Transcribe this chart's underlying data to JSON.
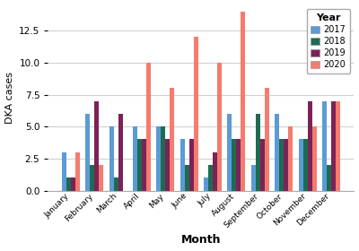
{
  "months": [
    "January",
    "February",
    "March",
    "April",
    "May",
    "June",
    "July",
    "August",
    "September",
    "October",
    "November",
    "December"
  ],
  "years": [
    "2017",
    "2018",
    "2019",
    "2020"
  ],
  "values": {
    "2017": [
      3,
      6,
      5,
      5,
      5,
      4,
      1,
      6,
      2,
      6,
      4,
      7
    ],
    "2018": [
      1,
      2,
      1,
      4,
      5,
      2,
      2,
      4,
      6,
      4,
      4,
      2
    ],
    "2019": [
      1,
      7,
      6,
      4,
      4,
      4,
      3,
      4,
      4,
      4,
      7,
      7
    ],
    "2020": [
      3,
      2,
      0,
      10,
      8,
      12,
      10,
      14,
      8,
      5,
      5,
      7
    ]
  },
  "colors": {
    "2017": "#5b9bd5",
    "2018": "#1e6b52",
    "2019": "#7b2257",
    "2020": "#f47c6e"
  },
  "ylabel": "DKA cases",
  "xlabel": "Month",
  "legend_title": "Year",
  "ylim": [
    0,
    14.5
  ],
  "yticks": [
    0.0,
    2.5,
    5.0,
    7.5,
    10.0,
    12.5
  ],
  "background_color": "#ffffff",
  "grid_color": "#d0d0d0"
}
